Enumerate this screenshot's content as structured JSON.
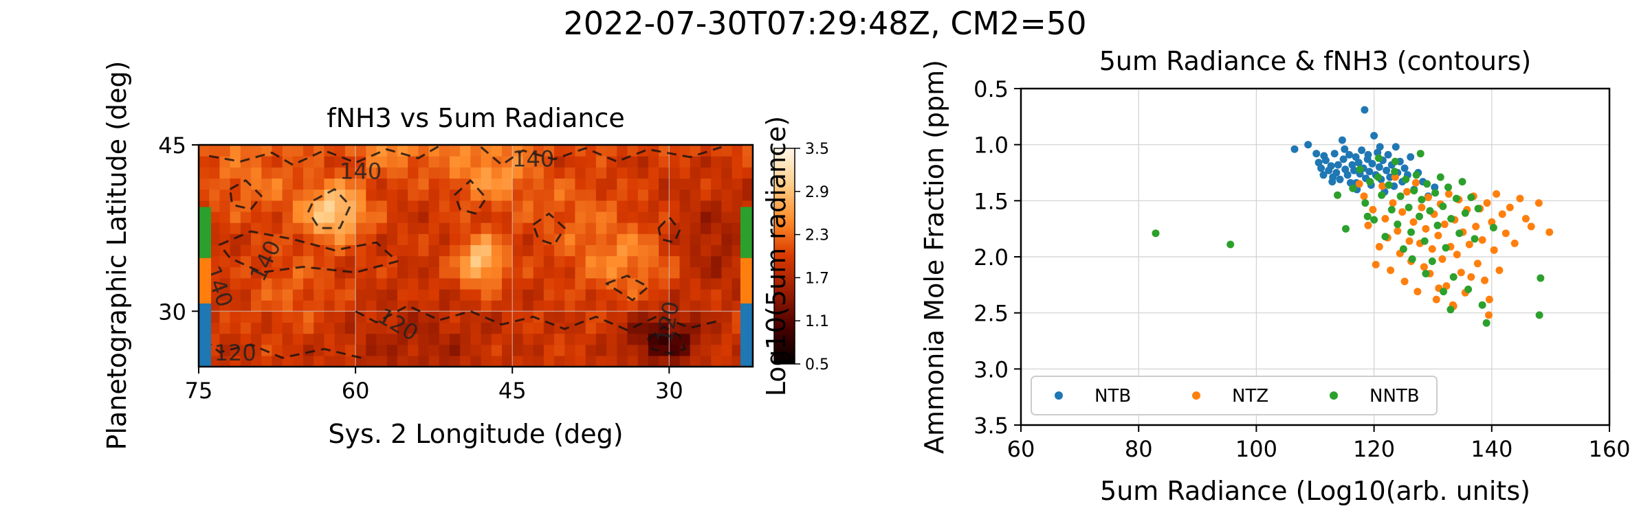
{
  "figure": {
    "suptitle": "2022-07-30T07:29:48Z, CM2=50"
  },
  "colors": {
    "NTB": "#1f77b4",
    "NTZ": "#ff7f0e",
    "NNTB": "#2ca02c",
    "grid": "#d0d0d0"
  },
  "chart_data": [
    {
      "type": "heatmap",
      "title": "fNH3 vs 5um Radiance",
      "xlabel": "Sys. 2 Longitude (deg)",
      "ylabel": "Planetographic Latitude (deg)",
      "xlim": [
        75,
        22
      ],
      "ylim": [
        25,
        45
      ],
      "xticks": [
        75,
        60,
        45,
        30
      ],
      "yticks": [
        30,
        45
      ],
      "colorbar": {
        "label": "Log10(5um radiance)",
        "range": [
          0.5,
          3.5
        ],
        "ticks": [
          "3.5",
          "2.9",
          "2.3",
          "1.7",
          "1.1",
          "0.5"
        ],
        "colors": [
          "#000000",
          "#4a0000",
          "#9a1c00",
          "#d83a00",
          "#ff8c2a",
          "#ffcf8a",
          "#fff6e8"
        ]
      },
      "contour_labels": [
        {
          "text": "140",
          "lon": 59.5,
          "lat": 42.5,
          "angle": 0
        },
        {
          "text": "140",
          "lon": 43.0,
          "lat": 43.6,
          "angle": 0
        },
        {
          "text": "140",
          "lon": 68.5,
          "lat": 34.5,
          "angle": -65
        },
        {
          "text": "140",
          "lon": 73.2,
          "lat": 32.2,
          "angle": 70
        },
        {
          "text": "120",
          "lon": 56.0,
          "lat": 28.7,
          "angle": 30
        },
        {
          "text": "120",
          "lon": 71.5,
          "lat": 26.1,
          "angle": 0
        },
        {
          "text": "120",
          "lon": 30.0,
          "lat": 29.0,
          "angle": -80
        }
      ],
      "band_markers": {
        "left": [
          {
            "name": "NTB",
            "lat": [
              25,
              30.7
            ]
          },
          {
            "name": "NTZ",
            "lat": [
              30.7,
              34.8
            ]
          },
          {
            "name": "NNTB",
            "lat": [
              34.8,
              39.4
            ]
          }
        ],
        "right": [
          {
            "name": "NTB",
            "lat": [
              25,
              30.7
            ]
          },
          {
            "name": "NTZ",
            "lat": [
              30.7,
              34.8
            ]
          },
          {
            "name": "NNTB",
            "lat": [
              34.8,
              39.4
            ]
          }
        ]
      }
    },
    {
      "type": "scatter",
      "title": "5um Radiance & fNH3 (contours)",
      "xlabel": "5um Radiance (Log10(arb. units)",
      "ylabel": "Ammonia Mole Fraction (ppm)",
      "xlim": [
        60,
        160
      ],
      "ylim": [
        3.5,
        0.5
      ],
      "xticks": [
        60,
        80,
        100,
        120,
        140,
        160
      ],
      "yticks": [
        "0.5",
        "1.0",
        "1.5",
        "2.0",
        "2.5",
        "3.0",
        "3.5"
      ],
      "grid": true,
      "legend_position": "lower-left",
      "series": [
        {
          "name": "NTB",
          "points": [
            [
              106.5,
              1.04
            ],
            [
              108.8,
              1.0
            ],
            [
              110.2,
              1.08
            ],
            [
              110.6,
              1.16
            ],
            [
              111.0,
              1.21
            ],
            [
              111.4,
              1.27
            ],
            [
              111.8,
              1.14
            ],
            [
              112.3,
              1.23
            ],
            [
              112.7,
              1.19
            ],
            [
              112.9,
              1.33
            ],
            [
              113.3,
              1.08
            ],
            [
              113.6,
              1.25
            ],
            [
              113.9,
              1.18
            ],
            [
              114.2,
              1.31
            ],
            [
              114.6,
              0.96
            ],
            [
              114.8,
              1.13
            ],
            [
              115.1,
              1.22
            ],
            [
              115.5,
              1.27
            ],
            [
              115.8,
              1.09
            ],
            [
              116.0,
              1.34
            ],
            [
              116.3,
              1.18
            ],
            [
              116.6,
              1.23
            ],
            [
              116.9,
              1.11
            ],
            [
              117.1,
              1.4
            ],
            [
              117.4,
              1.16
            ],
            [
              117.6,
              1.26
            ],
            [
              117.9,
              1.05
            ],
            [
              118.2,
              1.21
            ],
            [
              118.4,
              0.69
            ],
            [
              118.6,
              1.3
            ],
            [
              118.9,
              1.13
            ],
            [
              119.2,
              1.24
            ],
            [
              119.5,
              1.36
            ],
            [
              119.7,
              1.17
            ],
            [
              120.0,
              0.92
            ],
            [
              120.3,
              1.27
            ],
            [
              120.6,
              1.07
            ],
            [
              120.9,
              1.2
            ],
            [
              121.2,
              1.31
            ],
            [
              121.5,
              1.14
            ],
            [
              121.8,
              1.42
            ],
            [
              122.1,
              1.23
            ],
            [
              122.4,
              1.09
            ],
            [
              122.7,
              1.29
            ],
            [
              123.0,
              1.18
            ],
            [
              123.4,
              1.37
            ],
            [
              123.7,
              1.02
            ],
            [
              124.0,
              1.25
            ],
            [
              124.4,
              1.15
            ],
            [
              124.8,
              1.33
            ],
            [
              125.2,
              1.21
            ],
            [
              125.7,
              1.27
            ],
            [
              126.2,
              1.11
            ],
            [
              126.8,
              1.4
            ],
            [
              127.5,
              1.25
            ],
            [
              128.3,
              1.33
            ],
            [
              129.2,
              1.46
            ],
            [
              130.3,
              1.38
            ],
            [
              115.0,
              1.04
            ],
            [
              113.0,
              1.29
            ],
            [
              111.5,
              1.1
            ],
            [
              119.0,
              1.09
            ],
            [
              121.0,
              1.02
            ],
            [
              117.0,
              1.34
            ]
          ]
        },
        {
          "name": "NTZ",
          "points": [
            [
              117.5,
              1.35
            ],
            [
              118.3,
              1.46
            ],
            [
              119.0,
              1.72
            ],
            [
              119.8,
              1.58
            ],
            [
              120.3,
              2.07
            ],
            [
              120.9,
              1.91
            ],
            [
              121.4,
              1.37
            ],
            [
              121.9,
              1.66
            ],
            [
              122.3,
              1.83
            ],
            [
              122.8,
              2.12
            ],
            [
              123.2,
              1.52
            ],
            [
              123.6,
              1.29
            ],
            [
              124.0,
              1.77
            ],
            [
              124.4,
              1.97
            ],
            [
              124.8,
              1.6
            ],
            [
              125.2,
              2.22
            ],
            [
              125.6,
              1.42
            ],
            [
              126.0,
              1.86
            ],
            [
              126.3,
              2.04
            ],
            [
              126.7,
              1.69
            ],
            [
              127.1,
              1.34
            ],
            [
              127.4,
              2.31
            ],
            [
              127.8,
              1.88
            ],
            [
              128.1,
              1.56
            ],
            [
              128.5,
              2.09
            ],
            [
              128.8,
              1.75
            ],
            [
              129.2,
              1.47
            ],
            [
              129.5,
              2.15
            ],
            [
              129.9,
              1.93
            ],
            [
              130.2,
              1.62
            ],
            [
              130.6,
              2.38
            ],
            [
              130.9,
              1.81
            ],
            [
              131.3,
              1.53
            ],
            [
              131.6,
              2.02
            ],
            [
              132.0,
              1.71
            ],
            [
              132.3,
              2.26
            ],
            [
              132.7,
              1.44
            ],
            [
              133.0,
              1.91
            ],
            [
              133.4,
              2.43
            ],
            [
              133.7,
              1.67
            ],
            [
              134.1,
              1.98
            ],
            [
              134.4,
              1.49
            ],
            [
              134.8,
              2.14
            ],
            [
              135.1,
              1.78
            ],
            [
              135.5,
              2.32
            ],
            [
              135.8,
              1.58
            ],
            [
              136.2,
              1.89
            ],
            [
              136.5,
              2.18
            ],
            [
              136.9,
              1.46
            ],
            [
              137.3,
              1.73
            ],
            [
              137.6,
              2.06
            ],
            [
              138.0,
              1.57
            ],
            [
              138.4,
              1.85
            ],
            [
              138.8,
              2.21
            ],
            [
              139.2,
              1.52
            ],
            [
              139.6,
              2.38
            ],
            [
              140.0,
              1.69
            ],
            [
              140.4,
              1.94
            ],
            [
              140.8,
              1.44
            ],
            [
              141.3,
              2.12
            ],
            [
              141.8,
              1.62
            ],
            [
              142.4,
              1.79
            ],
            [
              143.1,
              1.56
            ],
            [
              143.9,
              1.88
            ],
            [
              144.8,
              1.48
            ],
            [
              145.8,
              1.66
            ],
            [
              146.7,
              1.73
            ],
            [
              148.0,
              1.52
            ],
            [
              149.8,
              1.78
            ],
            [
              139.5,
              2.52
            ],
            [
              131.0,
              2.28
            ],
            [
              133.5,
              2.44
            ]
          ]
        },
        {
          "name": "NNTB",
          "points": [
            [
              82.9,
              1.79
            ],
            [
              95.6,
              1.89
            ],
            [
              113.8,
              1.45
            ],
            [
              115.2,
              1.75
            ],
            [
              116.4,
              1.39
            ],
            [
              117.6,
              1.22
            ],
            [
              118.5,
              1.52
            ],
            [
              119.3,
              1.33
            ],
            [
              120.0,
              1.67
            ],
            [
              120.7,
              1.29
            ],
            [
              121.3,
              1.45
            ],
            [
              121.9,
              1.82
            ],
            [
              122.5,
              1.36
            ],
            [
              123.0,
              1.58
            ],
            [
              123.5,
              1.24
            ],
            [
              124.0,
              1.71
            ],
            [
              124.5,
              1.46
            ],
            [
              125.0,
              1.93
            ],
            [
              125.4,
              1.31
            ],
            [
              125.9,
              1.56
            ],
            [
              126.3,
              1.78
            ],
            [
              126.8,
              1.41
            ],
            [
              127.2,
              1.27
            ],
            [
              127.7,
              1.64
            ],
            [
              128.1,
              1.49
            ],
            [
              128.6,
              1.86
            ],
            [
              129.0,
              1.35
            ],
            [
              129.5,
              1.59
            ],
            [
              129.9,
              2.04
            ],
            [
              130.4,
              1.43
            ],
            [
              130.8,
              1.72
            ],
            [
              131.3,
              1.29
            ],
            [
              131.7,
              1.55
            ],
            [
              132.2,
              1.92
            ],
            [
              132.6,
              1.38
            ],
            [
              133.1,
              1.66
            ],
            [
              133.5,
              2.18
            ],
            [
              134.0,
              1.48
            ],
            [
              134.5,
              1.79
            ],
            [
              135.0,
              1.33
            ],
            [
              135.5,
              1.61
            ],
            [
              136.0,
              2.29
            ],
            [
              136.5,
              1.47
            ],
            [
              137.1,
              1.84
            ],
            [
              137.7,
              1.57
            ],
            [
              138.4,
              2.43
            ],
            [
              139.1,
              2.59
            ],
            [
              140.3,
              1.74
            ],
            [
              126.5,
              2.02
            ],
            [
              128.8,
              2.15
            ],
            [
              131.8,
              2.31
            ],
            [
              133.0,
              2.47
            ],
            [
              148.3,
              2.19
            ],
            [
              148.1,
              2.52
            ],
            [
              120.8,
              1.12
            ],
            [
              123.6,
              1.15
            ],
            [
              127.9,
              1.08
            ],
            [
              118.9,
              1.64
            ]
          ]
        }
      ]
    }
  ]
}
